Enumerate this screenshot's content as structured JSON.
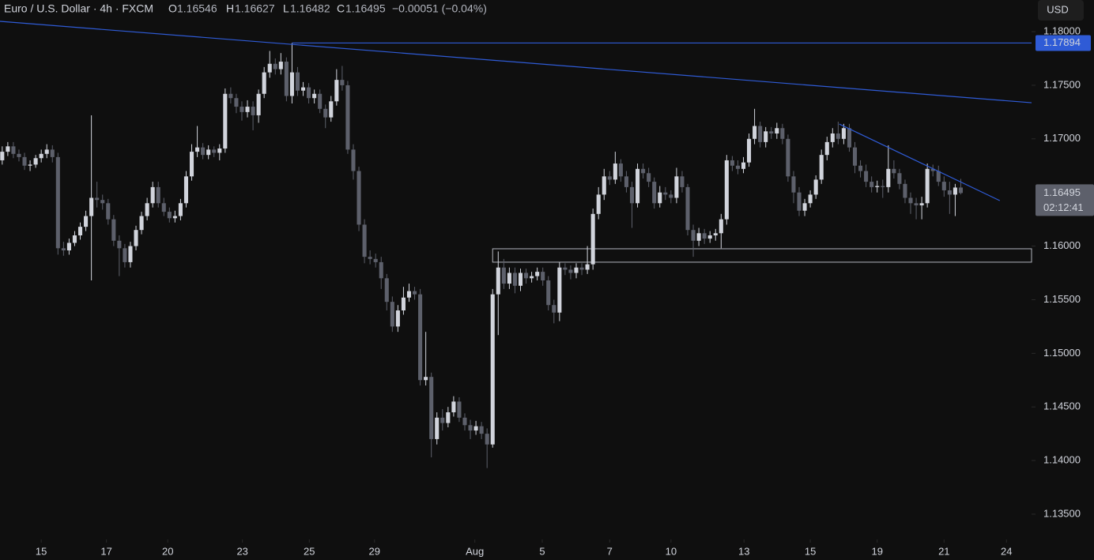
{
  "header": {
    "symbol": "Euro / U.S. Dollar · 4h · FXCM",
    "o_label": "O",
    "open": "1.16546",
    "h_label": "H",
    "high": "1.16627",
    "l_label": "L",
    "low": "1.16482",
    "c_label": "C",
    "close": "1.16495",
    "change": "−0.00051 (−0.04%)"
  },
  "currency": "USD",
  "chart_data": {
    "type": "candlestick",
    "up_color": "#d1d4dc",
    "down_color": "#5d606b",
    "open": [
      1.168,
      1.1688,
      1.1693,
      1.1686,
      1.1683,
      1.1675,
      1.1676,
      1.1682,
      1.1686,
      1.169,
      1.1683,
      1.1598,
      1.1596,
      1.1603,
      1.161,
      1.1618,
      1.1628,
      1.1645,
      1.1643,
      1.164,
      1.1625,
      1.1605,
      1.1598,
      1.1585,
      1.16,
      1.1615,
      1.1628,
      1.164,
      1.1655,
      1.164,
      1.1632,
      1.1626,
      1.1628,
      1.164,
      1.1665,
      1.1688,
      1.1692,
      1.1685,
      1.169,
      1.1687,
      1.1691,
      1.1742,
      1.1738,
      1.173,
      1.1725,
      1.173,
      1.1722,
      1.1742,
      1.1762,
      1.177,
      1.1765,
      1.1772,
      1.174,
      1.1762,
      1.1745,
      1.1748,
      1.1738,
      1.1742,
      1.1728,
      1.172,
      1.1735,
      1.1755,
      1.175,
      1.169,
      1.167,
      1.162,
      1.159,
      1.1588,
      1.1585,
      1.157,
      1.1548,
      1.1525,
      1.154,
      1.1552,
      1.1558,
      1.1555,
      1.1475,
      1.1478,
      1.142,
      1.144,
      1.1435,
      1.1445,
      1.1455,
      1.144,
      1.1433,
      1.1428,
      1.1432,
      1.1425,
      1.1415,
      1.1555,
      1.158,
      1.1565,
      1.1575,
      1.1563,
      1.1575,
      1.157,
      1.1572,
      1.1576,
      1.1568,
      1.1545,
      1.1538,
      1.158,
      1.1578,
      1.1575,
      1.158,
      1.1578,
      1.1583,
      1.163,
      1.1648,
      1.1665,
      1.1662,
      1.1677,
      1.1665,
      1.1655,
      1.164,
      1.1672,
      1.1668,
      1.166,
      1.164,
      1.165,
      1.1648,
      1.1645,
      1.1665,
      1.1655,
      1.1615,
      1.1605,
      1.1612,
      1.1607,
      1.161,
      1.1612,
      1.1625,
      1.168,
      1.1675,
      1.1672,
      1.1678,
      1.17,
      1.1712,
      1.1697,
      1.1707,
      1.1705,
      1.171,
      1.17,
      1.1665,
      1.165,
      1.1633,
      1.164,
      1.1648,
      1.1662,
      1.1685,
      1.1697,
      1.1705,
      1.17,
      1.171,
      1.1692,
      1.1675,
      1.167,
      1.166,
      1.1655,
      1.1656,
      1.1655,
      1.1672,
      1.1668,
      1.1658,
      1.1645,
      1.164,
      1.1638,
      1.164,
      1.1672,
      1.167,
      1.166,
      1.1652,
      1.1648,
      1.16546
    ],
    "high": [
      1.1693,
      1.1697,
      1.1697,
      1.169,
      1.1687,
      1.168,
      1.1685,
      1.169,
      1.1695,
      1.1694,
      1.1687,
      1.1604,
      1.1607,
      1.1614,
      1.1622,
      1.1633,
      1.1722,
      1.166,
      1.1648,
      1.1644,
      1.1629,
      1.161,
      1.1602,
      1.1604,
      1.1619,
      1.1632,
      1.1645,
      1.166,
      1.166,
      1.1645,
      1.1636,
      1.1633,
      1.1644,
      1.167,
      1.1695,
      1.1712,
      1.1696,
      1.1694,
      1.1693,
      1.1695,
      1.1747,
      1.1748,
      1.1742,
      1.1735,
      1.1736,
      1.1735,
      1.1746,
      1.1767,
      1.1782,
      1.1775,
      1.178,
      1.1776,
      1.17894,
      1.1767,
      1.1753,
      1.1752,
      1.1746,
      1.1746,
      1.1732,
      1.174,
      1.1765,
      1.1768,
      1.1754,
      1.1695,
      1.1674,
      1.1625,
      1.1596,
      1.1593,
      1.159,
      1.1574,
      1.1553,
      1.1545,
      1.1562,
      1.1565,
      1.1562,
      1.156,
      1.152,
      1.1482,
      1.1445,
      1.1448,
      1.145,
      1.146,
      1.1459,
      1.1444,
      1.1438,
      1.1437,
      1.1436,
      1.143,
      1.156,
      1.1595,
      1.1588,
      1.158,
      1.158,
      1.1579,
      1.1579,
      1.1576,
      1.158,
      1.158,
      1.1572,
      1.155,
      1.1585,
      1.1584,
      1.1582,
      1.1584,
      1.1584,
      1.16,
      1.1635,
      1.1655,
      1.1672,
      1.167,
      1.1688,
      1.1681,
      1.167,
      1.166,
      1.1677,
      1.1677,
      1.1673,
      1.1664,
      1.1656,
      1.1655,
      1.1652,
      1.1673,
      1.167,
      1.1658,
      1.162,
      1.1617,
      1.1616,
      1.1614,
      1.1616,
      1.163,
      1.1685,
      1.1684,
      1.168,
      1.1683,
      1.1705,
      1.1728,
      1.1716,
      1.1711,
      1.1711,
      1.1715,
      1.1714,
      1.1704,
      1.167,
      1.1655,
      1.1644,
      1.1652,
      1.1666,
      1.169,
      1.1702,
      1.171,
      1.1716,
      1.1714,
      1.1714,
      1.1697,
      1.168,
      1.1676,
      1.1665,
      1.1661,
      1.1662,
      1.1694,
      1.168,
      1.1672,
      1.1662,
      1.165,
      1.1645,
      1.1646,
      1.1677,
      1.1676,
      1.1675,
      1.1665,
      1.166,
      1.1658,
      1.16627
    ],
    "low": [
      1.1676,
      1.1684,
      1.1682,
      1.1679,
      1.1671,
      1.167,
      1.1673,
      1.1678,
      1.1682,
      1.1678,
      1.1592,
      1.1591,
      1.1592,
      1.16,
      1.1606,
      1.1614,
      1.1568,
      1.1636,
      1.1634,
      1.162,
      1.16,
      1.1572,
      1.158,
      1.158,
      1.1596,
      1.1611,
      1.1624,
      1.1636,
      1.1636,
      1.1628,
      1.1622,
      1.1622,
      1.1624,
      1.1636,
      1.1661,
      1.1683,
      1.1681,
      1.1681,
      1.1683,
      1.168,
      1.1687,
      1.1733,
      1.1724,
      1.1717,
      1.172,
      1.1708,
      1.1715,
      1.1738,
      1.1757,
      1.176,
      1.176,
      1.1735,
      1.1733,
      1.174,
      1.174,
      1.1733,
      1.1733,
      1.1724,
      1.171,
      1.1716,
      1.1731,
      1.1745,
      1.1686,
      1.1662,
      1.1614,
      1.1584,
      1.1583,
      1.158,
      1.156,
      1.154,
      1.152,
      1.152,
      1.1536,
      1.1548,
      1.155,
      1.147,
      1.147,
      1.1403,
      1.1415,
      1.1428,
      1.1431,
      1.1441,
      1.1436,
      1.1428,
      1.142,
      1.1424,
      1.142,
      1.1393,
      1.1412,
      1.1517,
      1.156,
      1.156,
      1.1556,
      1.1558,
      1.1565,
      1.1566,
      1.1568,
      1.1563,
      1.154,
      1.1528,
      1.153,
      1.1573,
      1.1569,
      1.157,
      1.1573,
      1.1574,
      1.1578,
      1.1625,
      1.1643,
      1.1657,
      1.1658,
      1.166,
      1.165,
      1.1617,
      1.1636,
      1.1663,
      1.1655,
      1.1635,
      1.1636,
      1.1643,
      1.164,
      1.164,
      1.165,
      1.161,
      1.159,
      1.16,
      1.1602,
      1.1603,
      1.1605,
      1.1598,
      1.162,
      1.167,
      1.1667,
      1.1668,
      1.1674,
      1.1695,
      1.1692,
      1.1692,
      1.17,
      1.17,
      1.1695,
      1.166,
      1.164,
      1.1628,
      1.1628,
      1.1636,
      1.1644,
      1.1658,
      1.168,
      1.1692,
      1.1695,
      1.1695,
      1.1688,
      1.1668,
      1.1664,
      1.1655,
      1.165,
      1.165,
      1.1645,
      1.165,
      1.1663,
      1.1653,
      1.164,
      1.163,
      1.1625,
      1.1625,
      1.1636,
      1.1665,
      1.1656,
      1.1646,
      1.163,
      1.1628,
      1.16482
    ],
    "close": [
      1.1688,
      1.1693,
      1.1686,
      1.1683,
      1.1675,
      1.1676,
      1.1682,
      1.1686,
      1.169,
      1.1683,
      1.1598,
      1.1596,
      1.1603,
      1.161,
      1.1618,
      1.1628,
      1.1645,
      1.1643,
      1.164,
      1.1625,
      1.1605,
      1.1598,
      1.1585,
      1.16,
      1.1615,
      1.1628,
      1.164,
      1.1655,
      1.164,
      1.1632,
      1.1626,
      1.1628,
      1.164,
      1.1665,
      1.1688,
      1.1692,
      1.1685,
      1.169,
      1.1687,
      1.1691,
      1.1742,
      1.1738,
      1.173,
      1.1725,
      1.173,
      1.1722,
      1.1742,
      1.1762,
      1.177,
      1.1765,
      1.1772,
      1.174,
      1.1762,
      1.1745,
      1.1748,
      1.1738,
      1.1742,
      1.1728,
      1.172,
      1.1735,
      1.1755,
      1.175,
      1.169,
      1.167,
      1.162,
      1.159,
      1.1588,
      1.1585,
      1.157,
      1.1548,
      1.1525,
      1.154,
      1.1552,
      1.1558,
      1.1555,
      1.1475,
      1.1478,
      1.142,
      1.144,
      1.1435,
      1.1445,
      1.1455,
      1.144,
      1.1433,
      1.1428,
      1.1432,
      1.1425,
      1.1415,
      1.1555,
      1.158,
      1.1565,
      1.1575,
      1.1563,
      1.1575,
      1.157,
      1.1572,
      1.1576,
      1.1568,
      1.1545,
      1.1538,
      1.158,
      1.1578,
      1.1575,
      1.158,
      1.1578,
      1.1583,
      1.163,
      1.1648,
      1.1665,
      1.1662,
      1.1677,
      1.1665,
      1.1655,
      1.164,
      1.1672,
      1.1668,
      1.166,
      1.164,
      1.165,
      1.1648,
      1.1645,
      1.1665,
      1.1655,
      1.1615,
      1.1605,
      1.1612,
      1.1607,
      1.161,
      1.1612,
      1.1625,
      1.168,
      1.1675,
      1.1672,
      1.1678,
      1.17,
      1.1712,
      1.1697,
      1.1707,
      1.1705,
      1.171,
      1.17,
      1.1665,
      1.165,
      1.1633,
      1.164,
      1.1648,
      1.1662,
      1.1685,
      1.1697,
      1.1705,
      1.17,
      1.171,
      1.1692,
      1.1675,
      1.167,
      1.166,
      1.1655,
      1.1656,
      1.1655,
      1.1672,
      1.1668,
      1.1658,
      1.1645,
      1.164,
      1.1638,
      1.164,
      1.1672,
      1.167,
      1.166,
      1.1652,
      1.1648,
      1.16546,
      1.16495
    ],
    "xlim": [
      -0.4,
      184.7
    ],
    "ylim": [
      1.13264,
      1.18295
    ],
    "yticks": [
      {
        "value": 1.18,
        "label": "1.18000"
      },
      {
        "value": 1.175,
        "label": "1.17500"
      },
      {
        "value": 1.17,
        "label": "1.17000"
      },
      {
        "value": 1.16,
        "label": "1.16000"
      },
      {
        "value": 1.155,
        "label": "1.15500"
      },
      {
        "value": 1.15,
        "label": "1.15000"
      },
      {
        "value": 1.145,
        "label": "1.14500"
      },
      {
        "value": 1.14,
        "label": "1.14000"
      },
      {
        "value": 1.135,
        "label": "1.13500"
      }
    ],
    "xticks": [
      {
        "value": 7.0,
        "label": "15"
      },
      {
        "value": 18.7,
        "label": "17"
      },
      {
        "value": 29.7,
        "label": "20"
      },
      {
        "value": 43.1,
        "label": "23"
      },
      {
        "value": 55.1,
        "label": "25"
      },
      {
        "value": 66.8,
        "label": "29"
      },
      {
        "value": 84.8,
        "label": "Aug"
      },
      {
        "value": 96.9,
        "label": "5"
      },
      {
        "value": 109,
        "label": "7"
      },
      {
        "value": 120,
        "label": "10"
      },
      {
        "value": 133.1,
        "label": "13"
      },
      {
        "value": 145,
        "label": "15"
      },
      {
        "value": 157,
        "label": "19"
      },
      {
        "value": 169,
        "label": "21"
      },
      {
        "value": 180.2,
        "label": "24"
      }
    ],
    "lines": [
      {
        "x": [
          -0.4,
          184.7
        ],
        "y": [
          1.18096,
          1.17337
        ],
        "color": "#2f5bd6"
      },
      {
        "x": [
          52,
          184.7
        ],
        "y": [
          1.17894,
          1.17894
        ],
        "color": "#2f5bd6"
      },
      {
        "x": [
          150.2,
          179.0
        ],
        "y": [
          1.17138,
          1.16424
        ],
        "color": "#2f5bd6"
      }
    ],
    "zone": {
      "x": [
        88,
        184.7
      ],
      "y": [
        1.1585,
        1.15975
      ],
      "color": "#b2b5be"
    },
    "price_marker": {
      "value": 1.17894,
      "label": "1.17894",
      "color": "#2f5bd6"
    },
    "last_price": {
      "value": 1.16495,
      "label": "1.16495",
      "color": "#5d606b"
    },
    "countdown": "02:12:41"
  }
}
